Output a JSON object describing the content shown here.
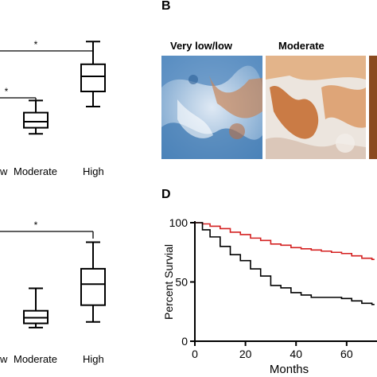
{
  "panels": {
    "A": {
      "label": "",
      "top_plot": {
        "categories": [
          "Very low/low",
          "Moderate",
          "High"
        ],
        "visible_tick_labels": [
          "w",
          "Moderate",
          "High"
        ],
        "significance": [
          "*",
          "*"
        ]
      },
      "bottom_plot": {
        "categories": [
          "Very low/low",
          "Moderate",
          "High"
        ],
        "visible_tick_labels": [
          "w",
          "Moderate",
          "High"
        ],
        "significance": [
          "*"
        ]
      }
    },
    "B": {
      "label": "B",
      "image_labels": [
        "Very low/low",
        "Moderate"
      ]
    },
    "D": {
      "label": "D"
    }
  },
  "chart_data": [
    {
      "type": "box",
      "categories": [
        "Moderate",
        "High"
      ],
      "boxes": [
        {
          "category": "Moderate",
          "whisker_low": 2.2,
          "q1": 2.6,
          "median": 3.0,
          "q3": 3.6,
          "whisker_high": 4.4
        },
        {
          "category": "High",
          "whisker_low": 4.0,
          "q1": 5.0,
          "median": 6.0,
          "q3": 6.8,
          "whisker_high": 8.3
        }
      ],
      "significance_brackets": [
        "*",
        "*"
      ]
    },
    {
      "type": "box",
      "categories": [
        "Moderate",
        "High"
      ],
      "boxes": [
        {
          "category": "Moderate",
          "whisker_low": 1.6,
          "q1": 1.9,
          "median": 2.3,
          "q3": 2.8,
          "whisker_high": 4.4
        },
        {
          "category": "High",
          "whisker_low": 2.0,
          "q1": 3.2,
          "median": 4.7,
          "q3": 5.8,
          "whisker_high": 7.7
        }
      ],
      "significance_brackets": [
        "*"
      ]
    },
    {
      "type": "line",
      "xlabel": "Months",
      "ylabel": "Percent Survial",
      "xlim": [
        0,
        72
      ],
      "ylim": [
        0,
        100
      ],
      "x_ticks": [
        0,
        20,
        40,
        60
      ],
      "y_ticks": [
        0,
        50,
        100
      ],
      "series": [
        {
          "color": "#d42020",
          "x": [
            0,
            3,
            6,
            10,
            14,
            18,
            22,
            26,
            30,
            34,
            38,
            42,
            46,
            50,
            54,
            58,
            62,
            66,
            70
          ],
          "y": [
            100,
            99,
            97,
            95,
            92,
            90,
            87,
            85,
            82,
            81,
            79,
            78,
            77,
            76,
            75,
            74,
            72,
            70,
            69
          ]
        },
        {
          "color": "#000000",
          "x": [
            0,
            3,
            6,
            10,
            14,
            18,
            22,
            26,
            30,
            34,
            38,
            42,
            46,
            50,
            54,
            58,
            62,
            66,
            70
          ],
          "y": [
            100,
            94,
            88,
            80,
            73,
            68,
            61,
            55,
            47,
            45,
            41,
            39,
            37,
            37,
            37,
            36,
            34,
            32,
            31
          ]
        }
      ]
    }
  ],
  "colors": {
    "red_series": "#d42020",
    "black_series": "#000000"
  }
}
